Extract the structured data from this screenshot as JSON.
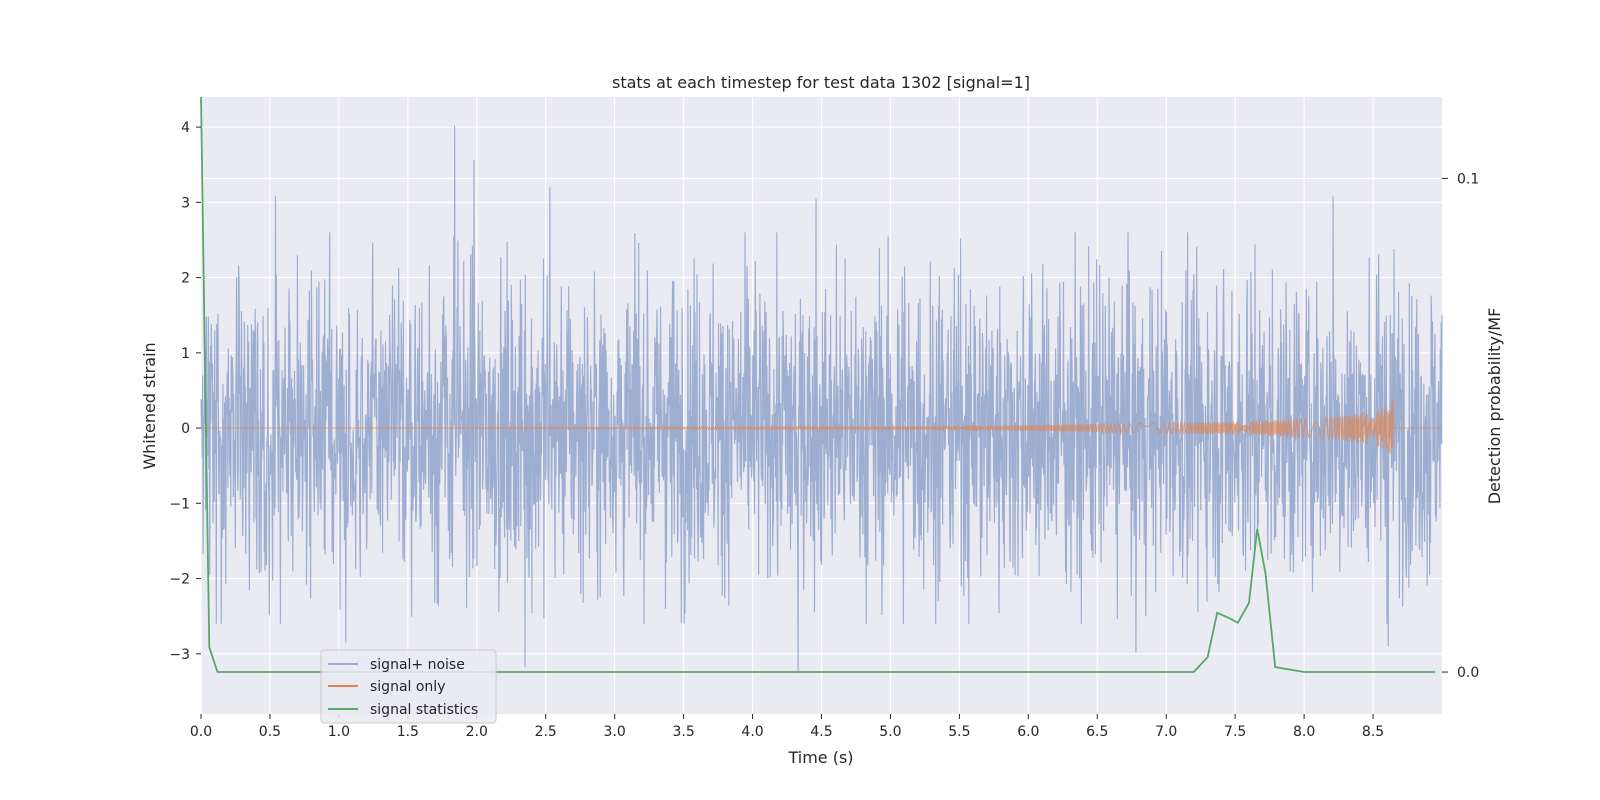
{
  "chart_data": {
    "type": "line",
    "title": "stats at each timestep for test data 1302 [signal=1]",
    "xlabel": "Time (s)",
    "ylabel": "Whitened strain",
    "y2label": "Detection probability/MF",
    "xlim": [
      0.0,
      9.0
    ],
    "ylim": [
      -3.8,
      4.4
    ],
    "y2lim": [
      -0.0085,
      0.1165
    ],
    "xticks": [
      "0.0",
      "0.5",
      "1.0",
      "1.5",
      "2.0",
      "2.5",
      "3.0",
      "3.5",
      "4.0",
      "4.5",
      "5.0",
      "5.5",
      "6.0",
      "6.5",
      "7.0",
      "7.5",
      "8.0",
      "8.5"
    ],
    "yticks": [
      "−3",
      "−2",
      "−1",
      "0",
      "1",
      "2",
      "3",
      "4"
    ],
    "y2ticks": [
      "0.0",
      "0.1"
    ],
    "grid": true,
    "legend_position": "lower-left",
    "series": [
      {
        "name": "signal+ noise",
        "color": "#9aabcf",
        "axis": "left",
        "description_stats": {
          "core_amplitude": 1.0,
          "max": 4.02,
          "min": -3.2
        },
        "peaks": [
          {
            "x": 0.54,
            "y": 3.08
          },
          {
            "x": 1.84,
            "y": 4.02
          },
          {
            "x": 1.98,
            "y": 3.56
          },
          {
            "x": 2.53,
            "y": 3.2
          },
          {
            "x": 4.46,
            "y": 3.05
          },
          {
            "x": 8.21,
            "y": 3.08
          },
          {
            "x": 2.35,
            "y": -3.18
          },
          {
            "x": 4.33,
            "y": -3.25
          },
          {
            "x": 1.05,
            "y": -2.85
          },
          {
            "x": 6.78,
            "y": -2.98
          },
          {
            "x": 8.61,
            "y": -2.9
          }
        ]
      },
      {
        "name": "signal only",
        "color": "#dd8452",
        "axis": "left",
        "envelope": {
          "x": [
            0.0,
            5.0,
            6.0,
            7.0,
            7.5,
            8.0,
            8.3,
            8.5,
            8.6,
            8.65
          ],
          "amplitude": [
            0.0,
            0.02,
            0.04,
            0.07,
            0.09,
            0.13,
            0.17,
            0.24,
            0.3,
            0.4
          ]
        },
        "end_x": 8.65
      },
      {
        "name": "signal statistics",
        "color": "#55a868",
        "axis": "right",
        "x": [
          0.0,
          0.03,
          0.06,
          0.12,
          0.5,
          1.0,
          2.0,
          3.0,
          4.0,
          5.0,
          6.0,
          7.0,
          7.2,
          7.3,
          7.37,
          7.45,
          7.52,
          7.6,
          7.66,
          7.72,
          7.79,
          8.0,
          8.5,
          8.95
        ],
        "y": [
          0.1165,
          0.06,
          0.005,
          0.0,
          0.0,
          0.0,
          0.0,
          0.0,
          0.0,
          0.0,
          0.0,
          0.0,
          0.0,
          0.003,
          0.012,
          0.011,
          0.01,
          0.014,
          0.029,
          0.02,
          0.001,
          0.0,
          0.0,
          0.0
        ]
      }
    ]
  }
}
